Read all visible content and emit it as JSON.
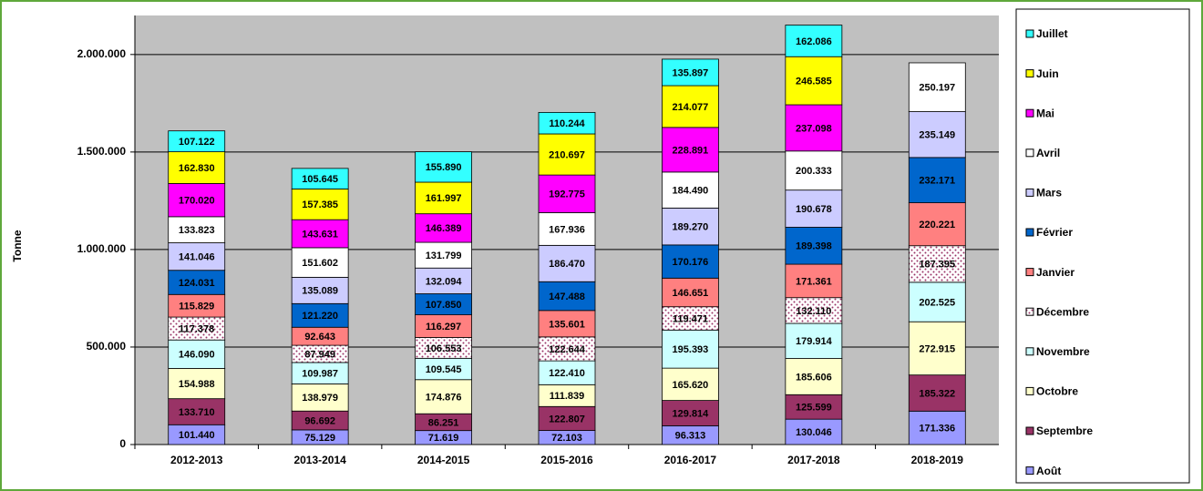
{
  "chart_data": {
    "type": "stacked_bar",
    "y_label": "Tonne",
    "categories": [
      "2012-2013",
      "2013-2014",
      "2014-2015",
      "2015-2016",
      "2016-2017",
      "2017-2018",
      "2018-2019"
    ],
    "ylim": [
      0,
      2200000
    ],
    "yticks": [
      0,
      {
        "value": 500000,
        "label": "500.000"
      },
      {
        "value": 1000000,
        "label": "1.000.000"
      },
      {
        "value": 1500000,
        "label": "1.500.000"
      },
      {
        "value": 2000000,
        "label": "2.000.000"
      }
    ],
    "grid": true,
    "legend": "right",
    "series": [
      {
        "name": "Août",
        "color": "#9999ff",
        "values": [
          101440,
          75129,
          71619,
          72103,
          96313,
          130046,
          171336
        ],
        "value_labels": [
          "101.440",
          "75.129",
          "71.619",
          "72.103",
          "96.313",
          "130.046",
          "171.336"
        ]
      },
      {
        "name": "Septembre",
        "color": "#993366",
        "values": [
          133710,
          96692,
          86251,
          122807,
          129814,
          125599,
          185322
        ],
        "value_labels": [
          "133.710",
          "96.692",
          "86.251",
          "122.807",
          "129.814",
          "125.599",
          "185.322"
        ]
      },
      {
        "name": "Octobre",
        "color": "#ffffcc",
        "values": [
          154988,
          138979,
          174876,
          111839,
          165620,
          185606,
          272915
        ],
        "value_labels": [
          "154.988",
          "138.979",
          "174.876",
          "111.839",
          "165.620",
          "185.606",
          "272.915"
        ]
      },
      {
        "name": "Novembre",
        "color": "#ccffff",
        "values": [
          146090,
          109987,
          109545,
          122410,
          195393,
          179914,
          202525
        ],
        "value_labels": [
          "146.090",
          "109.987",
          "109.545",
          "122.410",
          "195.393",
          "179.914",
          "202.525"
        ]
      },
      {
        "name": "Décembre",
        "color": "#ffffff",
        "pattern": "dots",
        "values": [
          117378,
          87949,
          106553,
          122644,
          119471,
          132110,
          187395
        ],
        "value_labels": [
          "117.378",
          "87.949",
          "106.553",
          "122.644",
          "119.471",
          "132.110",
          "187.395"
        ]
      },
      {
        "name": "Janvier",
        "color": "#ff8080",
        "values": [
          115829,
          92643,
          116297,
          135601,
          146651,
          171361,
          220221
        ],
        "value_labels": [
          "115.829",
          "92.643",
          "116.297",
          "135.601",
          "146.651",
          "171.361",
          "220.221"
        ]
      },
      {
        "name": "Février",
        "color": "#0066cc",
        "values": [
          124031,
          121220,
          107850,
          147488,
          170176,
          189398,
          232171
        ],
        "value_labels": [
          "124.031",
          "121.220",
          "107.850",
          "147.488",
          "170.176",
          "189.398",
          "232.171"
        ]
      },
      {
        "name": "Mars",
        "color": "#ccccff",
        "values": [
          141046,
          135089,
          132094,
          186470,
          189270,
          190678,
          235149
        ],
        "value_labels": [
          "141.046",
          "135.089",
          "132.094",
          "186.470",
          "189.270",
          "190.678",
          "235.149"
        ]
      },
      {
        "name": "Avril",
        "color": "#ffffff",
        "values": [
          133823,
          151602,
          131799,
          167936,
          184490,
          200333,
          250197
        ],
        "value_labels": [
          "133.823",
          "151.602",
          "131.799",
          "167.936",
          "184.490",
          "200.333",
          "250.197"
        ]
      },
      {
        "name": "Mai",
        "color": "#ff00ff",
        "values": [
          170020,
          143631,
          146389,
          192775,
          228891,
          237098,
          null
        ],
        "value_labels": [
          "170.020",
          "143.631",
          "146.389",
          "192.775",
          "228.891",
          "237.098",
          null
        ]
      },
      {
        "name": "Juin",
        "color": "#ffff00",
        "values": [
          162830,
          157385,
          161997,
          210697,
          214077,
          246585,
          null
        ],
        "value_labels": [
          "162.830",
          "157.385",
          "161.997",
          "210.697",
          "214.077",
          "246.585",
          null
        ]
      },
      {
        "name": "Juillet",
        "color": "#33ffff",
        "values": [
          107122,
          105645,
          155890,
          110244,
          135897,
          162086,
          null
        ],
        "value_labels": [
          "107.122",
          "105.645",
          "155.890",
          "110.244",
          "135.897",
          "162.086",
          null
        ]
      }
    ]
  }
}
